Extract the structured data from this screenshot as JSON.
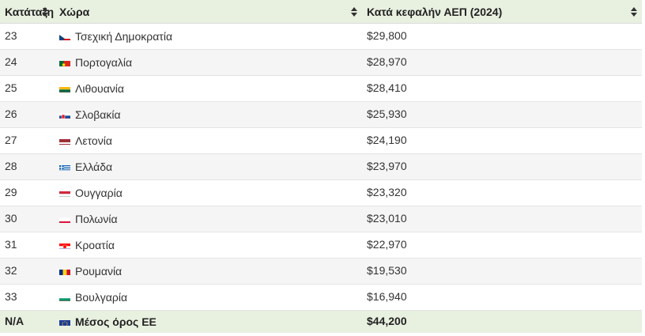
{
  "header": {
    "rank_label": "Κατάταξη",
    "country_label": "Χώρα",
    "gdp_label": "Κατά κεφαλήν ΑΕΠ (2024)"
  },
  "rows": [
    {
      "rank": "23",
      "country": "Τσεχική Δημοκρατία",
      "value": "$29,800",
      "flag": "czech-flag-icon"
    },
    {
      "rank": "24",
      "country": "Πορτογαλία",
      "value": "$28,970",
      "flag": "portugal-flag-icon"
    },
    {
      "rank": "25",
      "country": "Λιθουανία",
      "value": "$28,410",
      "flag": "lithuania-flag-icon"
    },
    {
      "rank": "26",
      "country": "Σλοβακία",
      "value": "$25,930",
      "flag": "slovakia-flag-icon"
    },
    {
      "rank": "27",
      "country": "Λετονία",
      "value": "$24,190",
      "flag": "latvia-flag-icon"
    },
    {
      "rank": "28",
      "country": "Ελλάδα",
      "value": "$23,970",
      "flag": "greece-flag-icon"
    },
    {
      "rank": "29",
      "country": "Ουγγαρία",
      "value": "$23,320",
      "flag": "hungary-flag-icon"
    },
    {
      "rank": "30",
      "country": "Πολωνία",
      "value": "$23,010",
      "flag": "poland-flag-icon"
    },
    {
      "rank": "31",
      "country": "Κροατία",
      "value": "$22,970",
      "flag": "croatia-flag-icon"
    },
    {
      "rank": "32",
      "country": "Ρουμανία",
      "value": "$19,530",
      "flag": "romania-flag-icon"
    },
    {
      "rank": "33",
      "country": "Βουλγαρία",
      "value": "$16,940",
      "flag": "bulgaria-flag-icon"
    }
  ],
  "footer": {
    "rank": "N/A",
    "country": "Μέσος όρος ΕΕ",
    "value": "$44,200",
    "flag": "eu-flag-icon"
  },
  "colors": {
    "header_bg": "#e8f0e0",
    "alt_row_bg": "#f5f5f5",
    "text": "#333333"
  }
}
